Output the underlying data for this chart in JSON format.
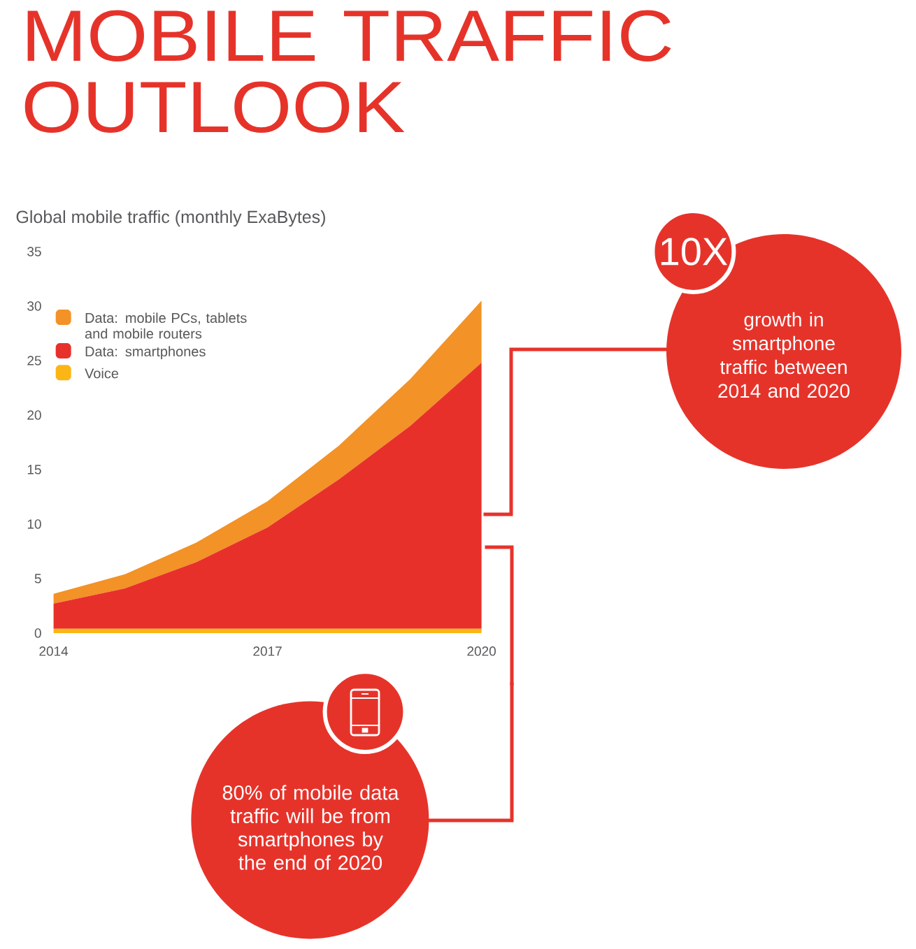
{
  "chart_data": {
    "type": "area",
    "title": "MOBILE TRAFFIC OUTLOOK",
    "subtitle": "Global mobile traffic (monthly ExaBytes)",
    "x": [
      2014,
      2015,
      2016,
      2017,
      2018,
      2019,
      2020
    ],
    "xlim": [
      2014,
      2020
    ],
    "xticks": [
      2014,
      2017,
      2020
    ],
    "ylim": [
      0,
      35
    ],
    "yticks": [
      0,
      5,
      10,
      15,
      20,
      25,
      30,
      35
    ],
    "stacked": true,
    "legend": "top left",
    "series": [
      {
        "name": "Voice",
        "color": "#fbb615",
        "values": [
          0.4,
          0.4,
          0.4,
          0.4,
          0.4,
          0.4,
          0.4
        ]
      },
      {
        "name": "Data: smartphones",
        "color": "#e8302a",
        "values": [
          2.3,
          3.7,
          6.1,
          9.3,
          13.7,
          18.6,
          24.4
        ]
      },
      {
        "name": "Data: mobile PCs, tablets and mobile routers",
        "color": "#f39226",
        "values": [
          0.9,
          1.3,
          1.8,
          2.4,
          3.1,
          4.3,
          5.7
        ]
      }
    ],
    "annotations": [
      "10X",
      "growth in smartphone traffic between 2014 and 2020",
      "80% of mobile data traffic will be from smartphones by the end of 2020"
    ]
  }
}
